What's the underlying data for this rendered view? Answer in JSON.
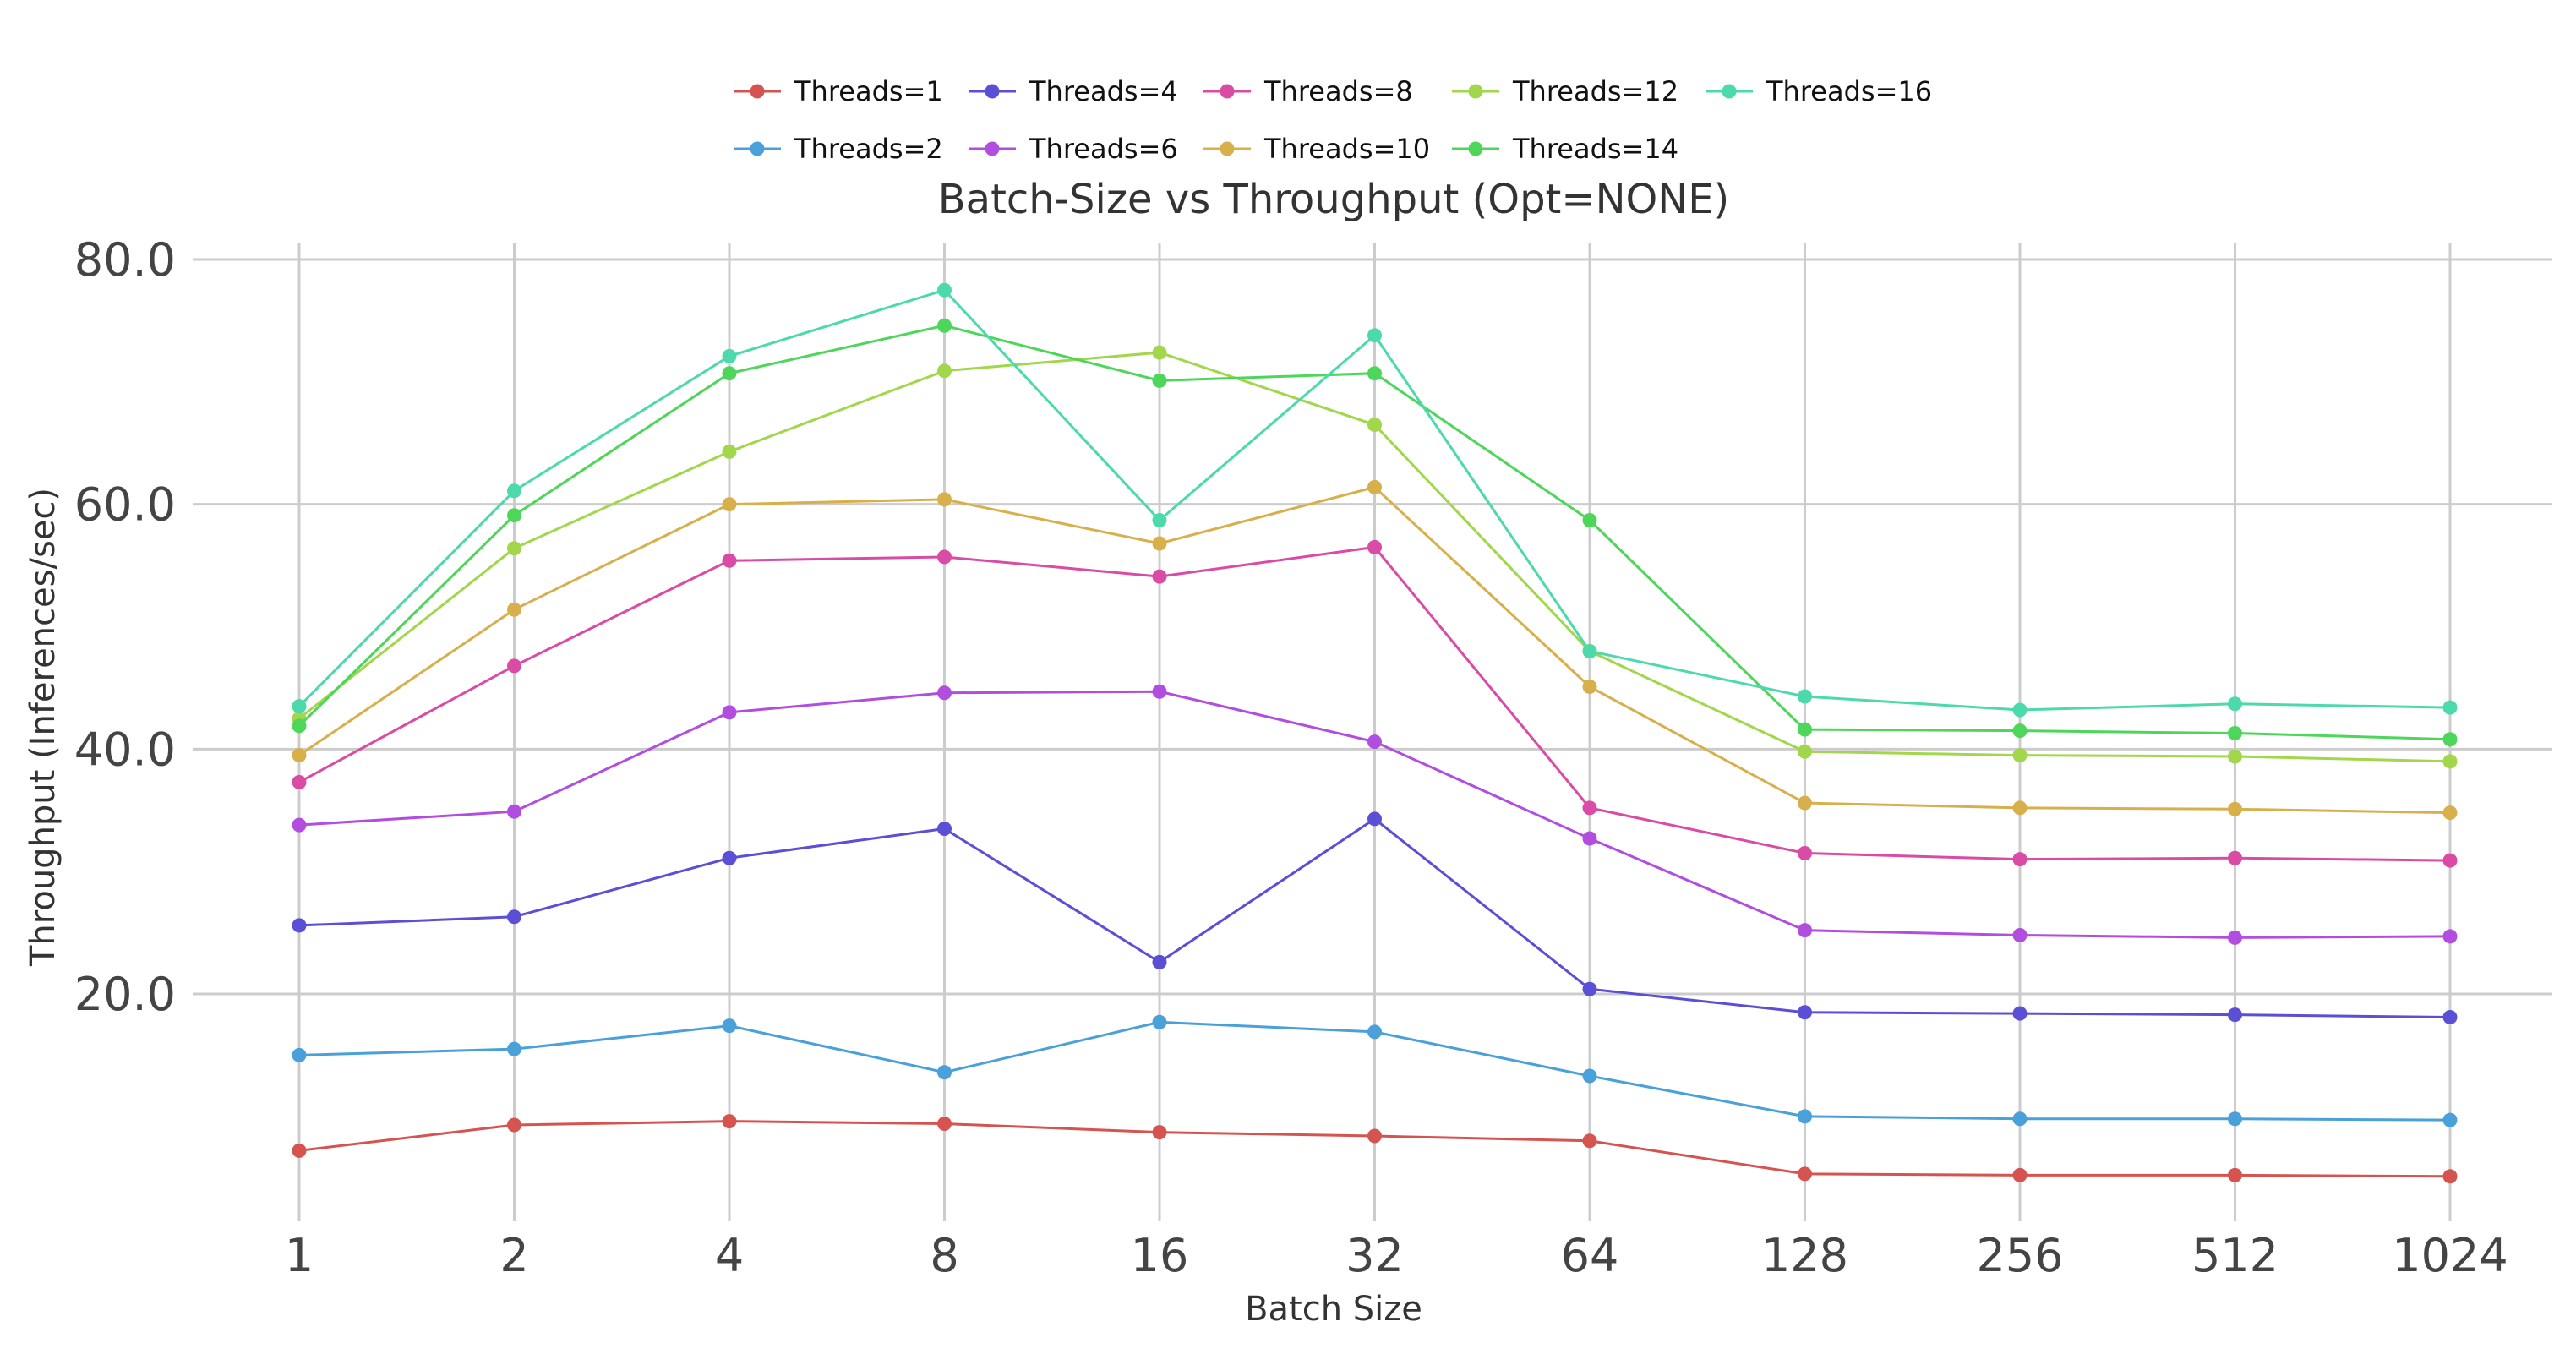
{
  "chart_data": {
    "type": "line",
    "title": "Batch-Size vs Throughput (Opt=NONE)",
    "xlabel": "Batch Size",
    "ylabel": "Throughput (Inferences/sec)",
    "categories": [
      "1",
      "2",
      "4",
      "8",
      "16",
      "32",
      "64",
      "128",
      "256",
      "512",
      "1024"
    ],
    "y_ticks": [
      20,
      40,
      60,
      80
    ],
    "y_tick_labels": [
      "20.0",
      "40.0",
      "60.0",
      "80.0"
    ],
    "ylim": [
      2.5,
      82
    ],
    "grid": true,
    "legend_position": "top-center",
    "series": [
      {
        "name": "Threads=1",
        "color": "#d65450",
        "values": [
          7.2,
          9.3,
          9.6,
          9.4,
          8.7,
          8.4,
          8.0,
          5.3,
          5.2,
          5.2,
          5.1
        ]
      },
      {
        "name": "Threads=2",
        "color": "#4aa0d9",
        "values": [
          15.0,
          15.5,
          17.4,
          13.6,
          17.7,
          16.9,
          13.3,
          10.0,
          9.8,
          9.8,
          9.7
        ]
      },
      {
        "name": "Threads=4",
        "color": "#5b4fd6",
        "values": [
          25.6,
          26.3,
          31.1,
          33.5,
          22.6,
          34.3,
          20.4,
          18.5,
          18.4,
          18.3,
          18.1
        ]
      },
      {
        "name": "Threads=6",
        "color": "#b14ee0",
        "values": [
          33.8,
          34.9,
          43.0,
          44.6,
          44.7,
          40.6,
          32.7,
          25.2,
          24.8,
          24.6,
          24.7
        ]
      },
      {
        "name": "Threads=8",
        "color": "#da4ba6",
        "values": [
          37.3,
          46.8,
          55.4,
          55.7,
          54.1,
          56.5,
          35.2,
          31.5,
          31.0,
          31.1,
          30.9
        ]
      },
      {
        "name": "Threads=10",
        "color": "#d7b04c",
        "values": [
          39.5,
          51.4,
          60.0,
          60.4,
          56.8,
          61.4,
          45.1,
          35.6,
          35.2,
          35.1,
          34.8
        ]
      },
      {
        "name": "Threads=12",
        "color": "#a2d64b",
        "values": [
          42.5,
          56.4,
          64.3,
          70.9,
          72.4,
          66.5,
          48.0,
          39.8,
          39.5,
          39.4,
          39.0
        ]
      },
      {
        "name": "Threads=14",
        "color": "#4ed65a",
        "values": [
          41.9,
          59.1,
          70.7,
          74.6,
          70.1,
          70.7,
          58.7,
          41.6,
          41.5,
          41.3,
          40.8
        ]
      },
      {
        "name": "Threads=16",
        "color": "#4cd9ac",
        "values": [
          43.5,
          61.1,
          72.1,
          77.5,
          58.7,
          73.8,
          48.0,
          44.3,
          43.2,
          43.7,
          43.4
        ]
      }
    ]
  }
}
